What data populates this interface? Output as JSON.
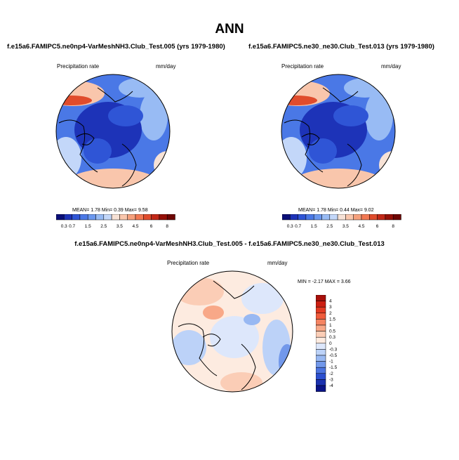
{
  "title": "ANN",
  "colors": {
    "ocean_blue": "#3f6fe0",
    "deep_blue": "#1f3fc8",
    "warm_peach": "#f8c8b0",
    "land_outline": "#000000"
  },
  "chart_data": [
    {
      "type": "heatmap",
      "projection": "polar",
      "title": "f.e15a6.FAMIPC5.ne0np4-VarMeshNH3.Club_Test.005 (yrs 1979-1980)",
      "left_label": "Precipitation rate",
      "right_label": "mm/day",
      "stats": "MEAN=   1.78  Min=   0.39  Max=   9.58",
      "colorbar_orientation": "horizontal",
      "levels": [
        "0.3",
        "0.7",
        "1",
        "1.5",
        "2",
        "2.5",
        "3",
        "3.5",
        "4",
        "4.5",
        "5",
        "6",
        "7",
        "8"
      ],
      "level_labels": [
        "0.3",
        "0.7",
        "1.5",
        "2.5",
        "3.5",
        "4.5",
        "6",
        "8"
      ],
      "colors": [
        "#0a0f78",
        "#1d33b8",
        "#2f55d6",
        "#4a78e6",
        "#6b98ef",
        "#98bbf4",
        "#c3d7f9",
        "#f7e2d6",
        "#f9c6ac",
        "#f6a07c",
        "#f27852",
        "#e04c2c",
        "#c22818",
        "#961008",
        "#6e0604"
      ]
    },
    {
      "type": "heatmap",
      "projection": "polar",
      "title": "f.e15a6.FAMIPC5.ne30_ne30.Club_Test.013 (yrs 1979-1980)",
      "left_label": "Precipitation rate",
      "right_label": "mm/day",
      "stats": "MEAN=   1.78  Min=   0.44  Max=   9.02",
      "colorbar_orientation": "horizontal",
      "levels": [
        "0.3",
        "0.7",
        "1",
        "1.5",
        "2",
        "2.5",
        "3",
        "3.5",
        "4",
        "4.5",
        "5",
        "6",
        "7",
        "8"
      ],
      "level_labels": [
        "0.3",
        "0.7",
        "1.5",
        "2.5",
        "3.5",
        "4.5",
        "6",
        "8"
      ],
      "colors": [
        "#0a0f78",
        "#1d33b8",
        "#2f55d6",
        "#4a78e6",
        "#6b98ef",
        "#98bbf4",
        "#c3d7f9",
        "#f7e2d6",
        "#f9c6ac",
        "#f6a07c",
        "#f27852",
        "#e04c2c",
        "#c22818",
        "#961008",
        "#6e0604"
      ]
    },
    {
      "type": "heatmap",
      "projection": "polar",
      "title": "f.e15a6.FAMIPC5.ne0np4-VarMeshNH3.Club_Test.005 - f.e15a6.FAMIPC5.ne30_ne30.Club_Test.013",
      "left_label": "Precipitation rate",
      "right_label": "mm/day",
      "stats": "MIN =  -2.17 MAX =   3.66",
      "colorbar_orientation": "vertical",
      "levels": [
        "4",
        "3",
        "2",
        "1.5",
        "1",
        "0.5",
        "0.3",
        "0",
        "-0.3",
        "-0.5",
        "-1",
        "-1.5",
        "-2",
        "-3",
        "-4"
      ],
      "colors": [
        "#a8100a",
        "#cc1f12",
        "#e23a22",
        "#f05c3c",
        "#f58462",
        "#f8a888",
        "#fbcdb6",
        "#fdebe0",
        "#dde7fb",
        "#bcd2f8",
        "#98b8f2",
        "#7298ea",
        "#4c74e0",
        "#2c4fcf",
        "#1b32b0",
        "#0a1488"
      ]
    }
  ]
}
